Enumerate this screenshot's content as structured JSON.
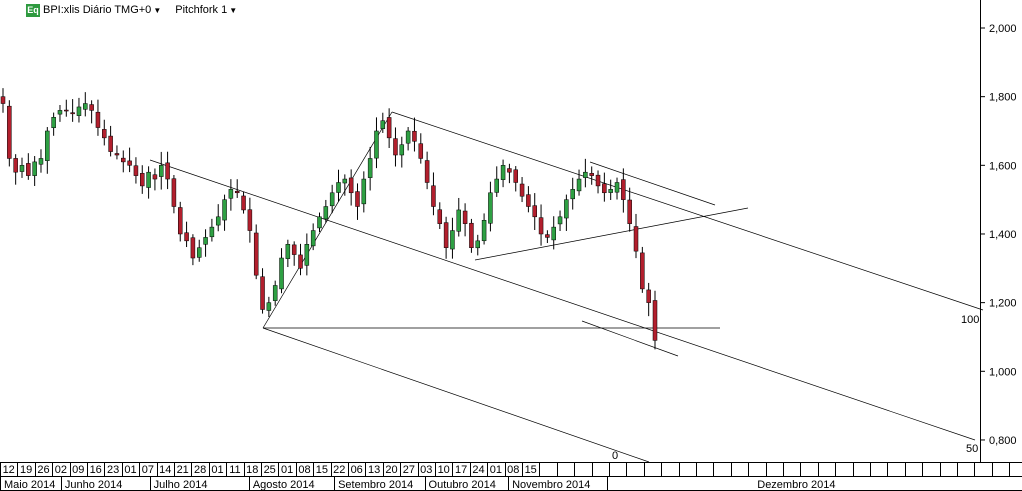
{
  "header": {
    "badge": "Eq",
    "symbol_label": "BPI:xlis Diário TMG+0",
    "study_label": "Pitchfork 1"
  },
  "colors": {
    "background": "#ffffff",
    "up_candle": "#2ea043",
    "down_candle": "#b21f2d",
    "line": "#000000",
    "badge": "#2e9a3f"
  },
  "chart_data": {
    "type": "candlestick",
    "title": "",
    "xlabel": "",
    "ylabel": "",
    "ylim": [
      0.7,
      2.09
    ],
    "y_ticks": [
      "2,000",
      "1,800",
      "1,600",
      "1,400",
      "1,200",
      "1,000",
      "0,800"
    ],
    "grid": false,
    "day_labels": [
      "12",
      "19",
      "26",
      "02",
      "09",
      "16",
      "23",
      "01",
      "07",
      "14",
      "21",
      "28",
      "01",
      "11",
      "18",
      "25",
      "01",
      "08",
      "15",
      "22",
      "06",
      "13",
      "20",
      "27",
      "03",
      "10",
      "17",
      "24",
      "01",
      "08",
      "15"
    ],
    "month_labels": [
      "Maio 2014",
      "Junho 2014",
      "Julho 2014",
      "Agosto 2014",
      "Setembro 2014",
      "Outubro 2014",
      "Novembro 2014",
      "Dezembro 2014"
    ],
    "pitchfork_labels": [
      "100",
      "0",
      "50"
    ],
    "closes": [
      1.78,
      1.62,
      1.58,
      1.6,
      1.57,
      1.61,
      1.62,
      1.7,
      1.74,
      1.76,
      1.76,
      1.75,
      1.77,
      1.78,
      1.76,
      1.71,
      1.68,
      1.64,
      1.63,
      1.61,
      1.6,
      1.57,
      1.54,
      1.58,
      1.56,
      1.6,
      1.56,
      1.48,
      1.4,
      1.38,
      1.33,
      1.36,
      1.39,
      1.42,
      1.45,
      1.5,
      1.53,
      1.52,
      1.47,
      1.41,
      1.28,
      1.18,
      1.2,
      1.25,
      1.33,
      1.37,
      1.34,
      1.3,
      1.37,
      1.41,
      1.45,
      1.48,
      1.52,
      1.55,
      1.56,
      1.52,
      1.48,
      1.56,
      1.62,
      1.7,
      1.73,
      1.68,
      1.63,
      1.66,
      1.7,
      1.67,
      1.62,
      1.55,
      1.48,
      1.43,
      1.36,
      1.41,
      1.47,
      1.43,
      1.36,
      1.38,
      1.44,
      1.52,
      1.56,
      1.6,
      1.58,
      1.55,
      1.51,
      1.48,
      1.45,
      1.4,
      1.39,
      1.42,
      1.45,
      1.5,
      1.53,
      1.56,
      1.58,
      1.57,
      1.54,
      1.52,
      1.53,
      1.55,
      1.5,
      1.43,
      1.35,
      1.24,
      1.2,
      1.09
    ]
  }
}
